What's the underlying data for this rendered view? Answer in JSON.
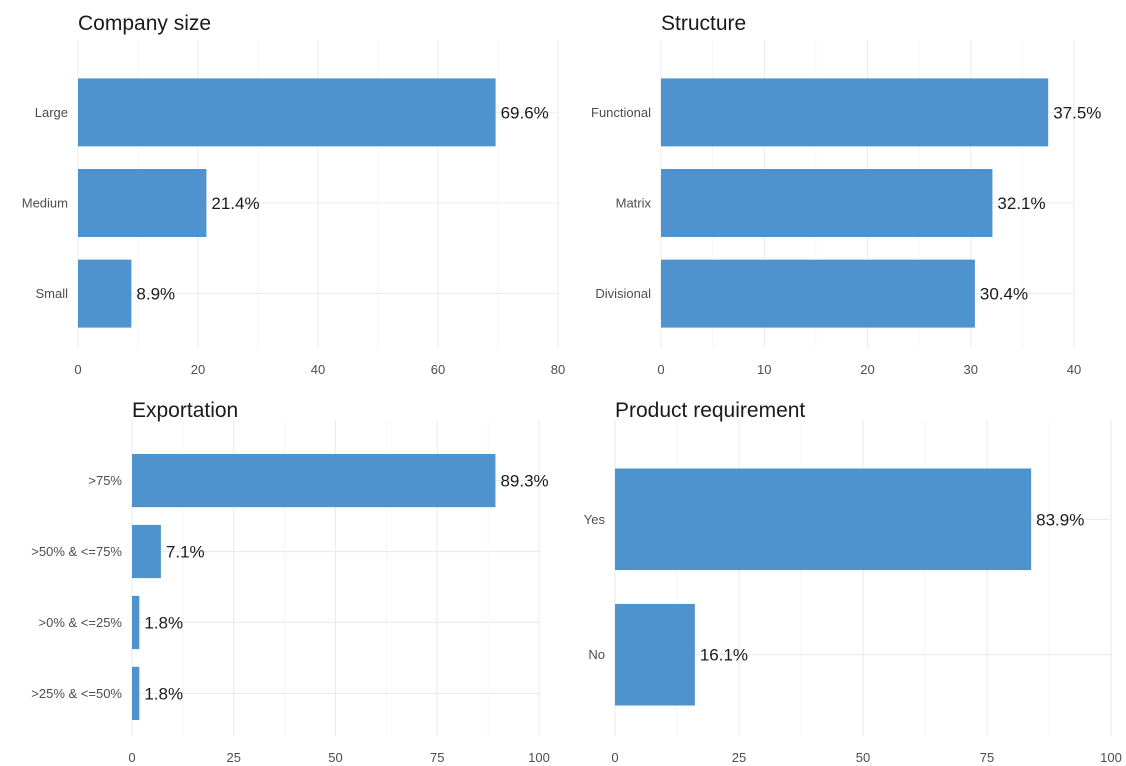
{
  "chart_data": [
    {
      "type": "bar",
      "orientation": "horizontal",
      "title": "Company size",
      "categories": [
        "Large",
        "Medium",
        "Small"
      ],
      "values": [
        69.6,
        21.4,
        8.9
      ],
      "data_labels": [
        "69.6%",
        "21.4%",
        "8.9%"
      ],
      "xlim": [
        0,
        80
      ],
      "xticks": [
        0,
        20,
        40,
        60,
        80
      ],
      "grid": true,
      "color": "#4f93ce"
    },
    {
      "type": "bar",
      "orientation": "horizontal",
      "title": "Structure",
      "categories": [
        "Functional",
        "Matrix",
        "Divisional"
      ],
      "values": [
        37.5,
        32.1,
        30.4
      ],
      "data_labels": [
        "37.5%",
        "32.1%",
        "30.4%"
      ],
      "xlim": [
        0,
        40
      ],
      "xticks": [
        0,
        10,
        20,
        30,
        40
      ],
      "grid": true,
      "color": "#4f93ce"
    },
    {
      "type": "bar",
      "orientation": "horizontal",
      "title": "Exportation",
      "categories": [
        ">75%",
        ">50% & <=75%",
        ">0% & <=25%",
        ">25% & <=50%"
      ],
      "values": [
        89.3,
        7.1,
        1.8,
        1.8
      ],
      "data_labels": [
        "89.3%",
        "7.1%",
        "1.8%",
        "1.8%"
      ],
      "xlim": [
        0,
        100
      ],
      "xticks": [
        0,
        25,
        50,
        75,
        100
      ],
      "grid": true,
      "color": "#4f93ce"
    },
    {
      "type": "bar",
      "orientation": "horizontal",
      "title": "Product requirement",
      "categories": [
        "Yes",
        "No"
      ],
      "values": [
        83.9,
        16.1
      ],
      "data_labels": [
        "83.9%",
        "16.1%"
      ],
      "xlim": [
        0,
        100
      ],
      "xticks": [
        0,
        25,
        50,
        75,
        100
      ],
      "grid": true,
      "color": "#4f93ce"
    }
  ]
}
